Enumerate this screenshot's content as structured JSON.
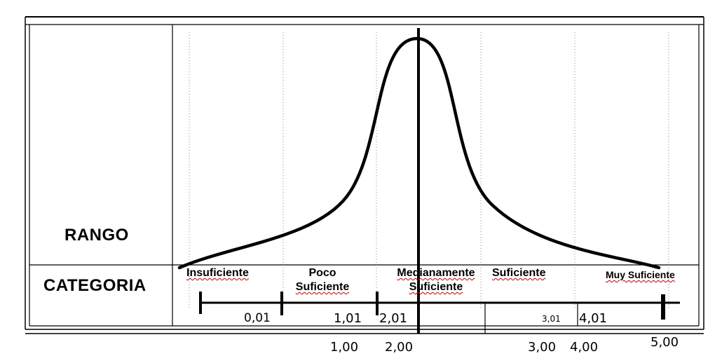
{
  "headers": {
    "rango": "RANGO",
    "categoria": "CATEGORIA"
  },
  "categories": [
    {
      "line1": "Insuficiente",
      "line2": ""
    },
    {
      "line1": "Poco",
      "line2": "Suficiente"
    },
    {
      "line1": "Medianamente",
      "line2": "Suficiente"
    },
    {
      "line1": "Suficiente",
      "line2": ""
    },
    {
      "line1": "Muy Suficiente",
      "line2": ""
    }
  ],
  "scale_inner": {
    "a": "0,01",
    "b": "1,01",
    "c": "2,01",
    "d": "3,01",
    "e": "4,01"
  },
  "scale_outer": {
    "a": "1,00",
    "b": "2,00",
    "c": "3,00",
    "d": "4,00",
    "e": "5,00"
  }
}
